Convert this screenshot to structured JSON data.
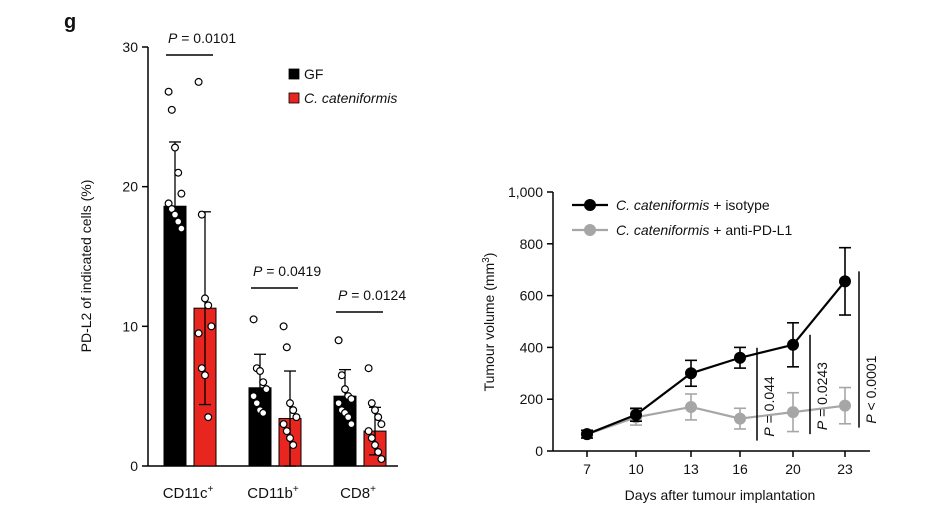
{
  "panel_label": "g",
  "chart_data": [
    {
      "type": "bar",
      "title": "",
      "xlabel": "",
      "ylabel": "PD-L2 of indicated cells (%)",
      "ylim": [
        0,
        30
      ],
      "yticks": [
        "0",
        "10",
        "20",
        "30"
      ],
      "categories": [
        "CD11c+",
        "CD11b+",
        "CD8+"
      ],
      "category_labels": [
        {
          "base": "CD11c",
          "sup": "+"
        },
        {
          "base": "CD11b",
          "sup": "+"
        },
        {
          "base": "CD8",
          "sup": "+"
        }
      ],
      "series": [
        {
          "name": "GF",
          "italic": false,
          "color": "#000000",
          "values": [
            18.6,
            5.6,
            5.0
          ],
          "errors": [
            4.6,
            2.4,
            1.9
          ],
          "points": [
            [
              26.8,
              25.5,
              22.8,
              21.0,
              19.5,
              18.8,
              18.4,
              18.0,
              17.5,
              17.0
            ],
            [
              10.5,
              7.0,
              6.8,
              6.0,
              5.5,
              5.0,
              4.5,
              4.0,
              3.8
            ],
            [
              9.0,
              6.5,
              5.5,
              5.0,
              4.8,
              4.5,
              4.0,
              3.8,
              3.5,
              3.0
            ]
          ]
        },
        {
          "name": "C. cateniformis",
          "italic": true,
          "color": "#e8261f",
          "values": [
            11.3,
            3.4,
            2.5
          ],
          "errors": [
            6.9,
            3.4,
            1.7
          ],
          "points": [
            [
              27.5,
              18.0,
              12.0,
              11.5,
              10.0,
              9.5,
              7.0,
              6.5,
              3.5
            ],
            [
              10.0,
              8.5,
              4.5,
              4.0,
              3.5,
              3.0,
              2.5,
              2.0,
              1.5
            ],
            [
              7.0,
              4.5,
              4.0,
              3.5,
              3.0,
              2.5,
              2.0,
              1.5,
              1.0,
              0.5
            ]
          ]
        }
      ],
      "comparisons": [
        {
          "category": "CD11c+",
          "p_label": "P",
          "p_value": " = 0.0101"
        },
        {
          "category": "CD11b+",
          "p_label": "P",
          "p_value": " = 0.0419"
        },
        {
          "category": "CD8+",
          "p_label": "P",
          "p_value": " = 0.0124"
        }
      ],
      "legend": "top-right"
    },
    {
      "type": "line",
      "title": "",
      "xlabel": "Days after tumour implantation",
      "ylabel": "Tumour volume (mm",
      "ylabel_sup": "3",
      "ylabel_tail": ")",
      "x": [
        7,
        10,
        13,
        16,
        20,
        23
      ],
      "xticks": [
        "7",
        "10",
        "13",
        "16",
        "20",
        "23"
      ],
      "ylim": [
        0,
        1000
      ],
      "yticks": [
        "0",
        "200",
        "400",
        "600",
        "800",
        "1,000"
      ],
      "series": [
        {
          "name_italic": "C. cateniformis",
          "name_rest": " + isotype",
          "color": "#000000",
          "values": [
            65,
            140,
            300,
            360,
            410,
            655
          ],
          "errors": [
            15,
            25,
            50,
            40,
            85,
            130
          ]
        },
        {
          "name_italic": "C. cateniformis",
          "name_rest": " + anti-PD-L1",
          "color": "#a6a6a6",
          "values": [
            65,
            130,
            170,
            125,
            150,
            175
          ],
          "errors": [
            15,
            30,
            50,
            40,
            75,
            70
          ]
        }
      ],
      "comparisons": [
        {
          "day": 16,
          "p_label": "P",
          "p_value": " = 0.044"
        },
        {
          "day": 20,
          "p_label": "P",
          "p_value": " = 0.0243"
        },
        {
          "day": 23,
          "p_label": "P",
          "p_value": " < 0.0001"
        }
      ],
      "legend": "top-left"
    }
  ]
}
